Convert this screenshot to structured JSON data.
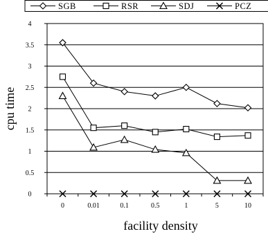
{
  "chart_data": {
    "type": "line",
    "title": "",
    "xlabel": "facility density",
    "ylabel": "cpu time",
    "categories": [
      "0",
      "0.01",
      "0.1",
      "0.5",
      "1",
      "5",
      "10"
    ],
    "ylim": [
      0,
      4
    ],
    "yticks": [
      "0",
      "0.5",
      "1",
      "1.5",
      "2",
      "2.5",
      "3",
      "3.5",
      "4"
    ],
    "grid": "horizontal",
    "legend_position": "top",
    "series": [
      {
        "name": "SGB",
        "marker": "diamond",
        "values": [
          3.55,
          2.6,
          2.4,
          2.3,
          2.5,
          2.12,
          2.02
        ]
      },
      {
        "name": "RSR",
        "marker": "square",
        "values": [
          2.75,
          1.55,
          1.6,
          1.45,
          1.52,
          1.34,
          1.37
        ]
      },
      {
        "name": "SDJ",
        "marker": "triangle",
        "values": [
          2.3,
          1.09,
          1.27,
          1.04,
          0.96,
          0.31,
          0.31
        ]
      },
      {
        "name": "PCZ",
        "marker": "x",
        "values": [
          0,
          0,
          0,
          0,
          0,
          0,
          0
        ]
      }
    ]
  }
}
